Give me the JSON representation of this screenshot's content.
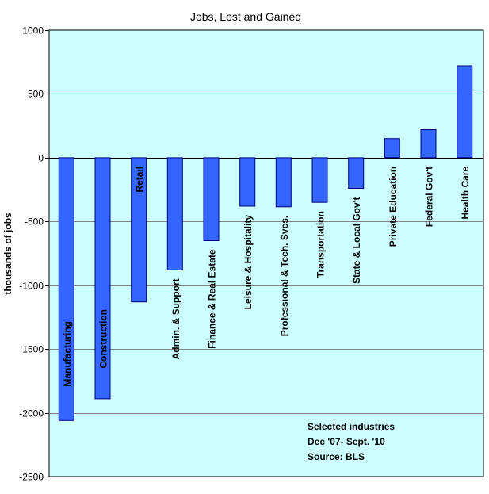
{
  "chart_data": {
    "type": "bar",
    "title": "Jobs, Lost and Gained",
    "xlabel": "",
    "ylabel": "thousands of jobs",
    "ylim": [
      -2500,
      1000
    ],
    "yticks": [
      1000,
      500,
      0,
      -500,
      -1000,
      -1500,
      -2000,
      -2500
    ],
    "grid": true,
    "categories": [
      "Manufacturing",
      "Construction",
      "Retail",
      "Admin. & Support",
      "Finance & Real Estate",
      "Leisure & Hospitality",
      "Professional & Tech. Svcs.",
      "Transportation",
      "State & Local Gov't",
      "Private Education",
      "Federal Gov't",
      "Health Care"
    ],
    "values": [
      -2060,
      -1890,
      -1130,
      -880,
      -650,
      -380,
      -385,
      -350,
      -240,
      150,
      220,
      720
    ],
    "annotation": [
      "Selected industries",
      "Dec '07- Sept. '10",
      "Source: BLS"
    ]
  },
  "colors": {
    "plot_background": "#CCFFFF",
    "bar_fill": "#3366FF",
    "bar_stroke": "#000080",
    "gridline": "#808080"
  }
}
